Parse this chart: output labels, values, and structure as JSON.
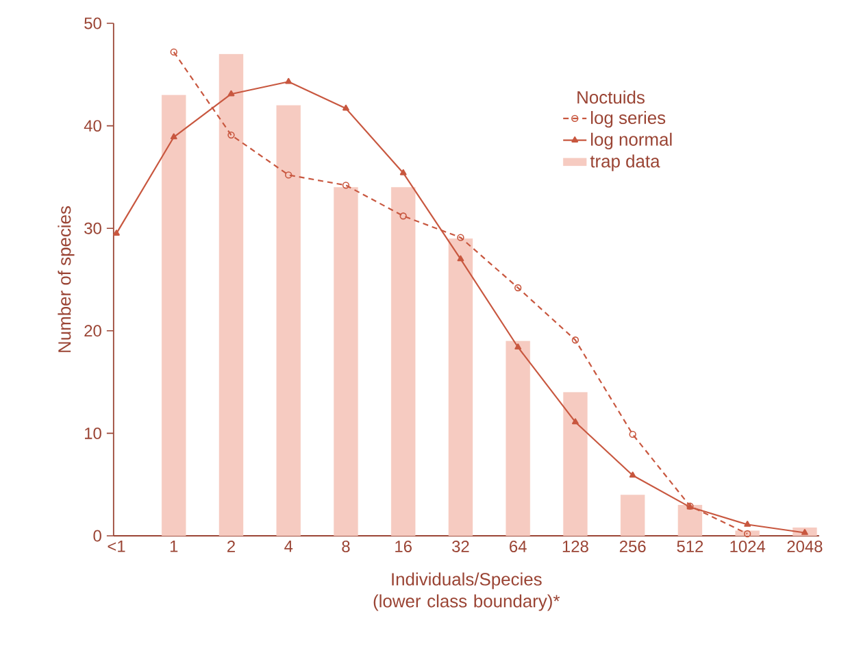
{
  "chart_data": {
    "type": "bar",
    "xlabel": "Individuals/Species (lower class boundary)*",
    "ylabel": "Number of species",
    "legend_title": "Noctuids",
    "categories": [
      "<1",
      "1",
      "2",
      "4",
      "8",
      "16",
      "32",
      "64",
      "128",
      "256",
      "512",
      "1024",
      "2048"
    ],
    "series": [
      {
        "name": "log series",
        "type": "line",
        "color": "#c8573f",
        "marker": "circle",
        "line_style": "dashed",
        "values": [
          null,
          47.2,
          39.1,
          35.2,
          34.2,
          31.2,
          29.1,
          24.2,
          19.1,
          9.9,
          2.9,
          0.2,
          null
        ]
      },
      {
        "name": "log normal",
        "type": "line",
        "color": "#c8573f",
        "marker": "triangle",
        "line_style": "solid",
        "values": [
          29.5,
          38.9,
          43.1,
          44.3,
          41.7,
          35.4,
          27.0,
          18.4,
          11.1,
          5.9,
          2.8,
          1.1,
          0.3
        ]
      },
      {
        "name": "trap data",
        "color": "#f6cbc1",
        "values": [
          null,
          43,
          47,
          42,
          34,
          34,
          29,
          19,
          14,
          4,
          3,
          0.5,
          0.8
        ]
      }
    ],
    "ylim": [
      0,
      50
    ],
    "yticks": [
      0,
      10,
      20,
      30,
      40,
      50
    ],
    "legend": "right",
    "grid": false
  }
}
